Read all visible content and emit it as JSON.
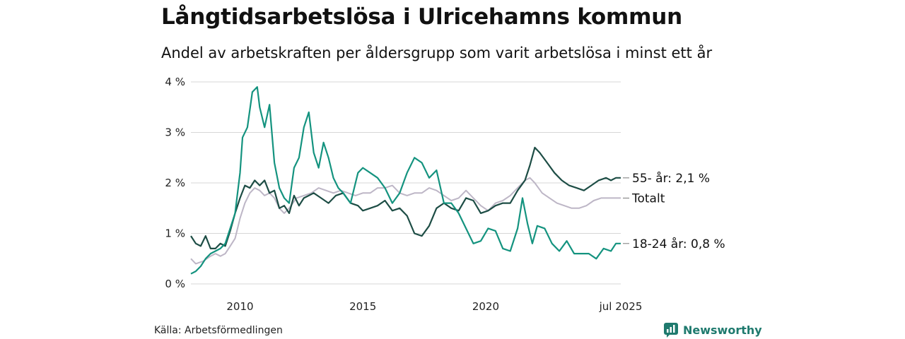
{
  "header": {
    "title": "Långtidsarbetslösa i Ulricehamns kommun",
    "subtitle": "Andel av arbetskraften per åldersgrupp som varit arbetslösa i minst ett år"
  },
  "footer": {
    "source": "Källa: Arbetsförmedlingen",
    "brand": "Newsworthy"
  },
  "colors": {
    "age_55": "#1d4d45",
    "age_18_24": "#14937f",
    "total": "#bdb6c6",
    "grid": "#d7d7d7",
    "brand": "#1f7a6e"
  },
  "chart_data": {
    "type": "line",
    "title": "Långtidsarbetslösa i Ulricehamns kommun",
    "subtitle": "Andel av arbetskraften per åldersgrupp som varit arbetslösa i minst ett år",
    "x_ticks": [
      {
        "value": 2010,
        "label": "2010"
      },
      {
        "value": 2015,
        "label": "2015"
      },
      {
        "value": 2020,
        "label": "2020"
      },
      {
        "value": 2025.5,
        "label": "jul 2025"
      }
    ],
    "y_ticks": [
      {
        "value": 0,
        "label": "0 %"
      },
      {
        "value": 1,
        "label": "1 %"
      },
      {
        "value": 2,
        "label": "2 %"
      },
      {
        "value": 3,
        "label": "3 %"
      },
      {
        "value": 4,
        "label": "4 %"
      }
    ],
    "xlim": [
      2008.0,
      2025.5
    ],
    "ylim": [
      0,
      4
    ],
    "grid": true,
    "series": [
      {
        "key": "total",
        "name": "Totalt",
        "end_label": "Totalt",
        "color": "#bdb6c6",
        "points": [
          [
            2008.0,
            0.5
          ],
          [
            2008.2,
            0.4
          ],
          [
            2008.5,
            0.45
          ],
          [
            2008.8,
            0.55
          ],
          [
            2009.0,
            0.6
          ],
          [
            2009.2,
            0.55
          ],
          [
            2009.4,
            0.6
          ],
          [
            2009.6,
            0.75
          ],
          [
            2009.8,
            0.9
          ],
          [
            2010.0,
            1.3
          ],
          [
            2010.2,
            1.6
          ],
          [
            2010.4,
            1.8
          ],
          [
            2010.6,
            1.9
          ],
          [
            2010.8,
            1.85
          ],
          [
            2011.0,
            1.75
          ],
          [
            2011.2,
            1.8
          ],
          [
            2011.4,
            1.7
          ],
          [
            2011.6,
            1.5
          ],
          [
            2011.8,
            1.4
          ],
          [
            2012.0,
            1.5
          ],
          [
            2012.3,
            1.7
          ],
          [
            2012.6,
            1.75
          ],
          [
            2012.9,
            1.8
          ],
          [
            2013.2,
            1.9
          ],
          [
            2013.5,
            1.85
          ],
          [
            2013.8,
            1.8
          ],
          [
            2014.1,
            1.85
          ],
          [
            2014.4,
            1.8
          ],
          [
            2014.7,
            1.75
          ],
          [
            2015.0,
            1.8
          ],
          [
            2015.3,
            1.8
          ],
          [
            2015.6,
            1.9
          ],
          [
            2015.9,
            1.9
          ],
          [
            2016.2,
            1.95
          ],
          [
            2016.5,
            1.8
          ],
          [
            2016.8,
            1.75
          ],
          [
            2017.1,
            1.8
          ],
          [
            2017.4,
            1.8
          ],
          [
            2017.7,
            1.9
          ],
          [
            2018.0,
            1.85
          ],
          [
            2018.3,
            1.75
          ],
          [
            2018.6,
            1.65
          ],
          [
            2018.9,
            1.7
          ],
          [
            2019.2,
            1.85
          ],
          [
            2019.5,
            1.7
          ],
          [
            2019.8,
            1.55
          ],
          [
            2020.1,
            1.45
          ],
          [
            2020.4,
            1.6
          ],
          [
            2020.7,
            1.65
          ],
          [
            2021.0,
            1.75
          ],
          [
            2021.3,
            1.9
          ],
          [
            2021.6,
            2.05
          ],
          [
            2021.8,
            2.1
          ],
          [
            2022.0,
            2.0
          ],
          [
            2022.3,
            1.8
          ],
          [
            2022.6,
            1.7
          ],
          [
            2022.9,
            1.6
          ],
          [
            2023.2,
            1.55
          ],
          [
            2023.5,
            1.5
          ],
          [
            2023.8,
            1.5
          ],
          [
            2024.1,
            1.55
          ],
          [
            2024.4,
            1.65
          ],
          [
            2024.7,
            1.7
          ],
          [
            2025.0,
            1.7
          ],
          [
            2025.2,
            1.7
          ],
          [
            2025.5,
            1.7
          ]
        ]
      },
      {
        "key": "age_55",
        "name": "55- år",
        "end_label": "55- år: 2,1 %",
        "color": "#1d4d45",
        "points": [
          [
            2008.0,
            0.95
          ],
          [
            2008.2,
            0.8
          ],
          [
            2008.4,
            0.75
          ],
          [
            2008.6,
            0.95
          ],
          [
            2008.8,
            0.7
          ],
          [
            2009.0,
            0.7
          ],
          [
            2009.2,
            0.8
          ],
          [
            2009.4,
            0.75
          ],
          [
            2009.6,
            1.05
          ],
          [
            2009.8,
            1.4
          ],
          [
            2010.0,
            1.7
          ],
          [
            2010.2,
            1.95
          ],
          [
            2010.4,
            1.9
          ],
          [
            2010.6,
            2.05
          ],
          [
            2010.8,
            1.95
          ],
          [
            2011.0,
            2.05
          ],
          [
            2011.2,
            1.8
          ],
          [
            2011.4,
            1.85
          ],
          [
            2011.6,
            1.5
          ],
          [
            2011.8,
            1.55
          ],
          [
            2012.0,
            1.4
          ],
          [
            2012.2,
            1.75
          ],
          [
            2012.4,
            1.55
          ],
          [
            2012.6,
            1.7
          ],
          [
            2012.8,
            1.75
          ],
          [
            2013.0,
            1.8
          ],
          [
            2013.3,
            1.7
          ],
          [
            2013.6,
            1.6
          ],
          [
            2013.9,
            1.75
          ],
          [
            2014.2,
            1.8
          ],
          [
            2014.5,
            1.6
          ],
          [
            2014.8,
            1.55
          ],
          [
            2015.0,
            1.45
          ],
          [
            2015.3,
            1.5
          ],
          [
            2015.6,
            1.55
          ],
          [
            2015.9,
            1.65
          ],
          [
            2016.2,
            1.45
          ],
          [
            2016.5,
            1.5
          ],
          [
            2016.8,
            1.35
          ],
          [
            2017.1,
            1.0
          ],
          [
            2017.4,
            0.95
          ],
          [
            2017.7,
            1.15
          ],
          [
            2018.0,
            1.5
          ],
          [
            2018.3,
            1.6
          ],
          [
            2018.6,
            1.5
          ],
          [
            2018.9,
            1.45
          ],
          [
            2019.2,
            1.7
          ],
          [
            2019.5,
            1.65
          ],
          [
            2019.8,
            1.4
          ],
          [
            2020.1,
            1.45
          ],
          [
            2020.4,
            1.55
          ],
          [
            2020.7,
            1.6
          ],
          [
            2021.0,
            1.6
          ],
          [
            2021.3,
            1.85
          ],
          [
            2021.6,
            2.05
          ],
          [
            2021.8,
            2.35
          ],
          [
            2022.0,
            2.7
          ],
          [
            2022.2,
            2.6
          ],
          [
            2022.5,
            2.4
          ],
          [
            2022.8,
            2.2
          ],
          [
            2023.1,
            2.05
          ],
          [
            2023.4,
            1.95
          ],
          [
            2023.7,
            1.9
          ],
          [
            2024.0,
            1.85
          ],
          [
            2024.3,
            1.95
          ],
          [
            2024.6,
            2.05
          ],
          [
            2024.9,
            2.1
          ],
          [
            2025.1,
            2.05
          ],
          [
            2025.3,
            2.1
          ],
          [
            2025.5,
            2.1
          ]
        ]
      },
      {
        "key": "age_18_24",
        "name": "18-24 år",
        "end_label": "18-24 år: 0,8 %",
        "color": "#14937f",
        "points": [
          [
            2008.0,
            0.2
          ],
          [
            2008.2,
            0.25
          ],
          [
            2008.4,
            0.35
          ],
          [
            2008.6,
            0.5
          ],
          [
            2008.8,
            0.6
          ],
          [
            2009.0,
            0.65
          ],
          [
            2009.2,
            0.7
          ],
          [
            2009.4,
            0.8
          ],
          [
            2009.6,
            1.1
          ],
          [
            2009.8,
            1.4
          ],
          [
            2010.0,
            2.2
          ],
          [
            2010.1,
            2.9
          ],
          [
            2010.3,
            3.1
          ],
          [
            2010.5,
            3.8
          ],
          [
            2010.7,
            3.9
          ],
          [
            2010.8,
            3.5
          ],
          [
            2011.0,
            3.1
          ],
          [
            2011.2,
            3.55
          ],
          [
            2011.4,
            2.4
          ],
          [
            2011.6,
            1.9
          ],
          [
            2011.8,
            1.7
          ],
          [
            2012.0,
            1.6
          ],
          [
            2012.2,
            2.3
          ],
          [
            2012.4,
            2.5
          ],
          [
            2012.6,
            3.1
          ],
          [
            2012.8,
            3.4
          ],
          [
            2013.0,
            2.6
          ],
          [
            2013.2,
            2.3
          ],
          [
            2013.4,
            2.8
          ],
          [
            2013.6,
            2.5
          ],
          [
            2013.8,
            2.1
          ],
          [
            2014.0,
            1.9
          ],
          [
            2014.2,
            1.8
          ],
          [
            2014.5,
            1.6
          ],
          [
            2014.8,
            2.2
          ],
          [
            2015.0,
            2.3
          ],
          [
            2015.3,
            2.2
          ],
          [
            2015.6,
            2.1
          ],
          [
            2015.9,
            1.9
          ],
          [
            2016.2,
            1.6
          ],
          [
            2016.5,
            1.8
          ],
          [
            2016.8,
            2.2
          ],
          [
            2017.1,
            2.5
          ],
          [
            2017.4,
            2.4
          ],
          [
            2017.7,
            2.1
          ],
          [
            2018.0,
            2.25
          ],
          [
            2018.3,
            1.6
          ],
          [
            2018.6,
            1.6
          ],
          [
            2018.9,
            1.4
          ],
          [
            2019.2,
            1.1
          ],
          [
            2019.5,
            0.8
          ],
          [
            2019.8,
            0.85
          ],
          [
            2020.1,
            1.1
          ],
          [
            2020.4,
            1.05
          ],
          [
            2020.7,
            0.7
          ],
          [
            2021.0,
            0.65
          ],
          [
            2021.3,
            1.1
          ],
          [
            2021.5,
            1.7
          ],
          [
            2021.7,
            1.2
          ],
          [
            2021.9,
            0.8
          ],
          [
            2022.1,
            1.15
          ],
          [
            2022.4,
            1.1
          ],
          [
            2022.7,
            0.8
          ],
          [
            2023.0,
            0.65
          ],
          [
            2023.3,
            0.85
          ],
          [
            2023.6,
            0.6
          ],
          [
            2023.9,
            0.6
          ],
          [
            2024.2,
            0.6
          ],
          [
            2024.5,
            0.5
          ],
          [
            2024.8,
            0.7
          ],
          [
            2025.1,
            0.65
          ],
          [
            2025.3,
            0.8
          ],
          [
            2025.5,
            0.8
          ]
        ]
      }
    ]
  }
}
